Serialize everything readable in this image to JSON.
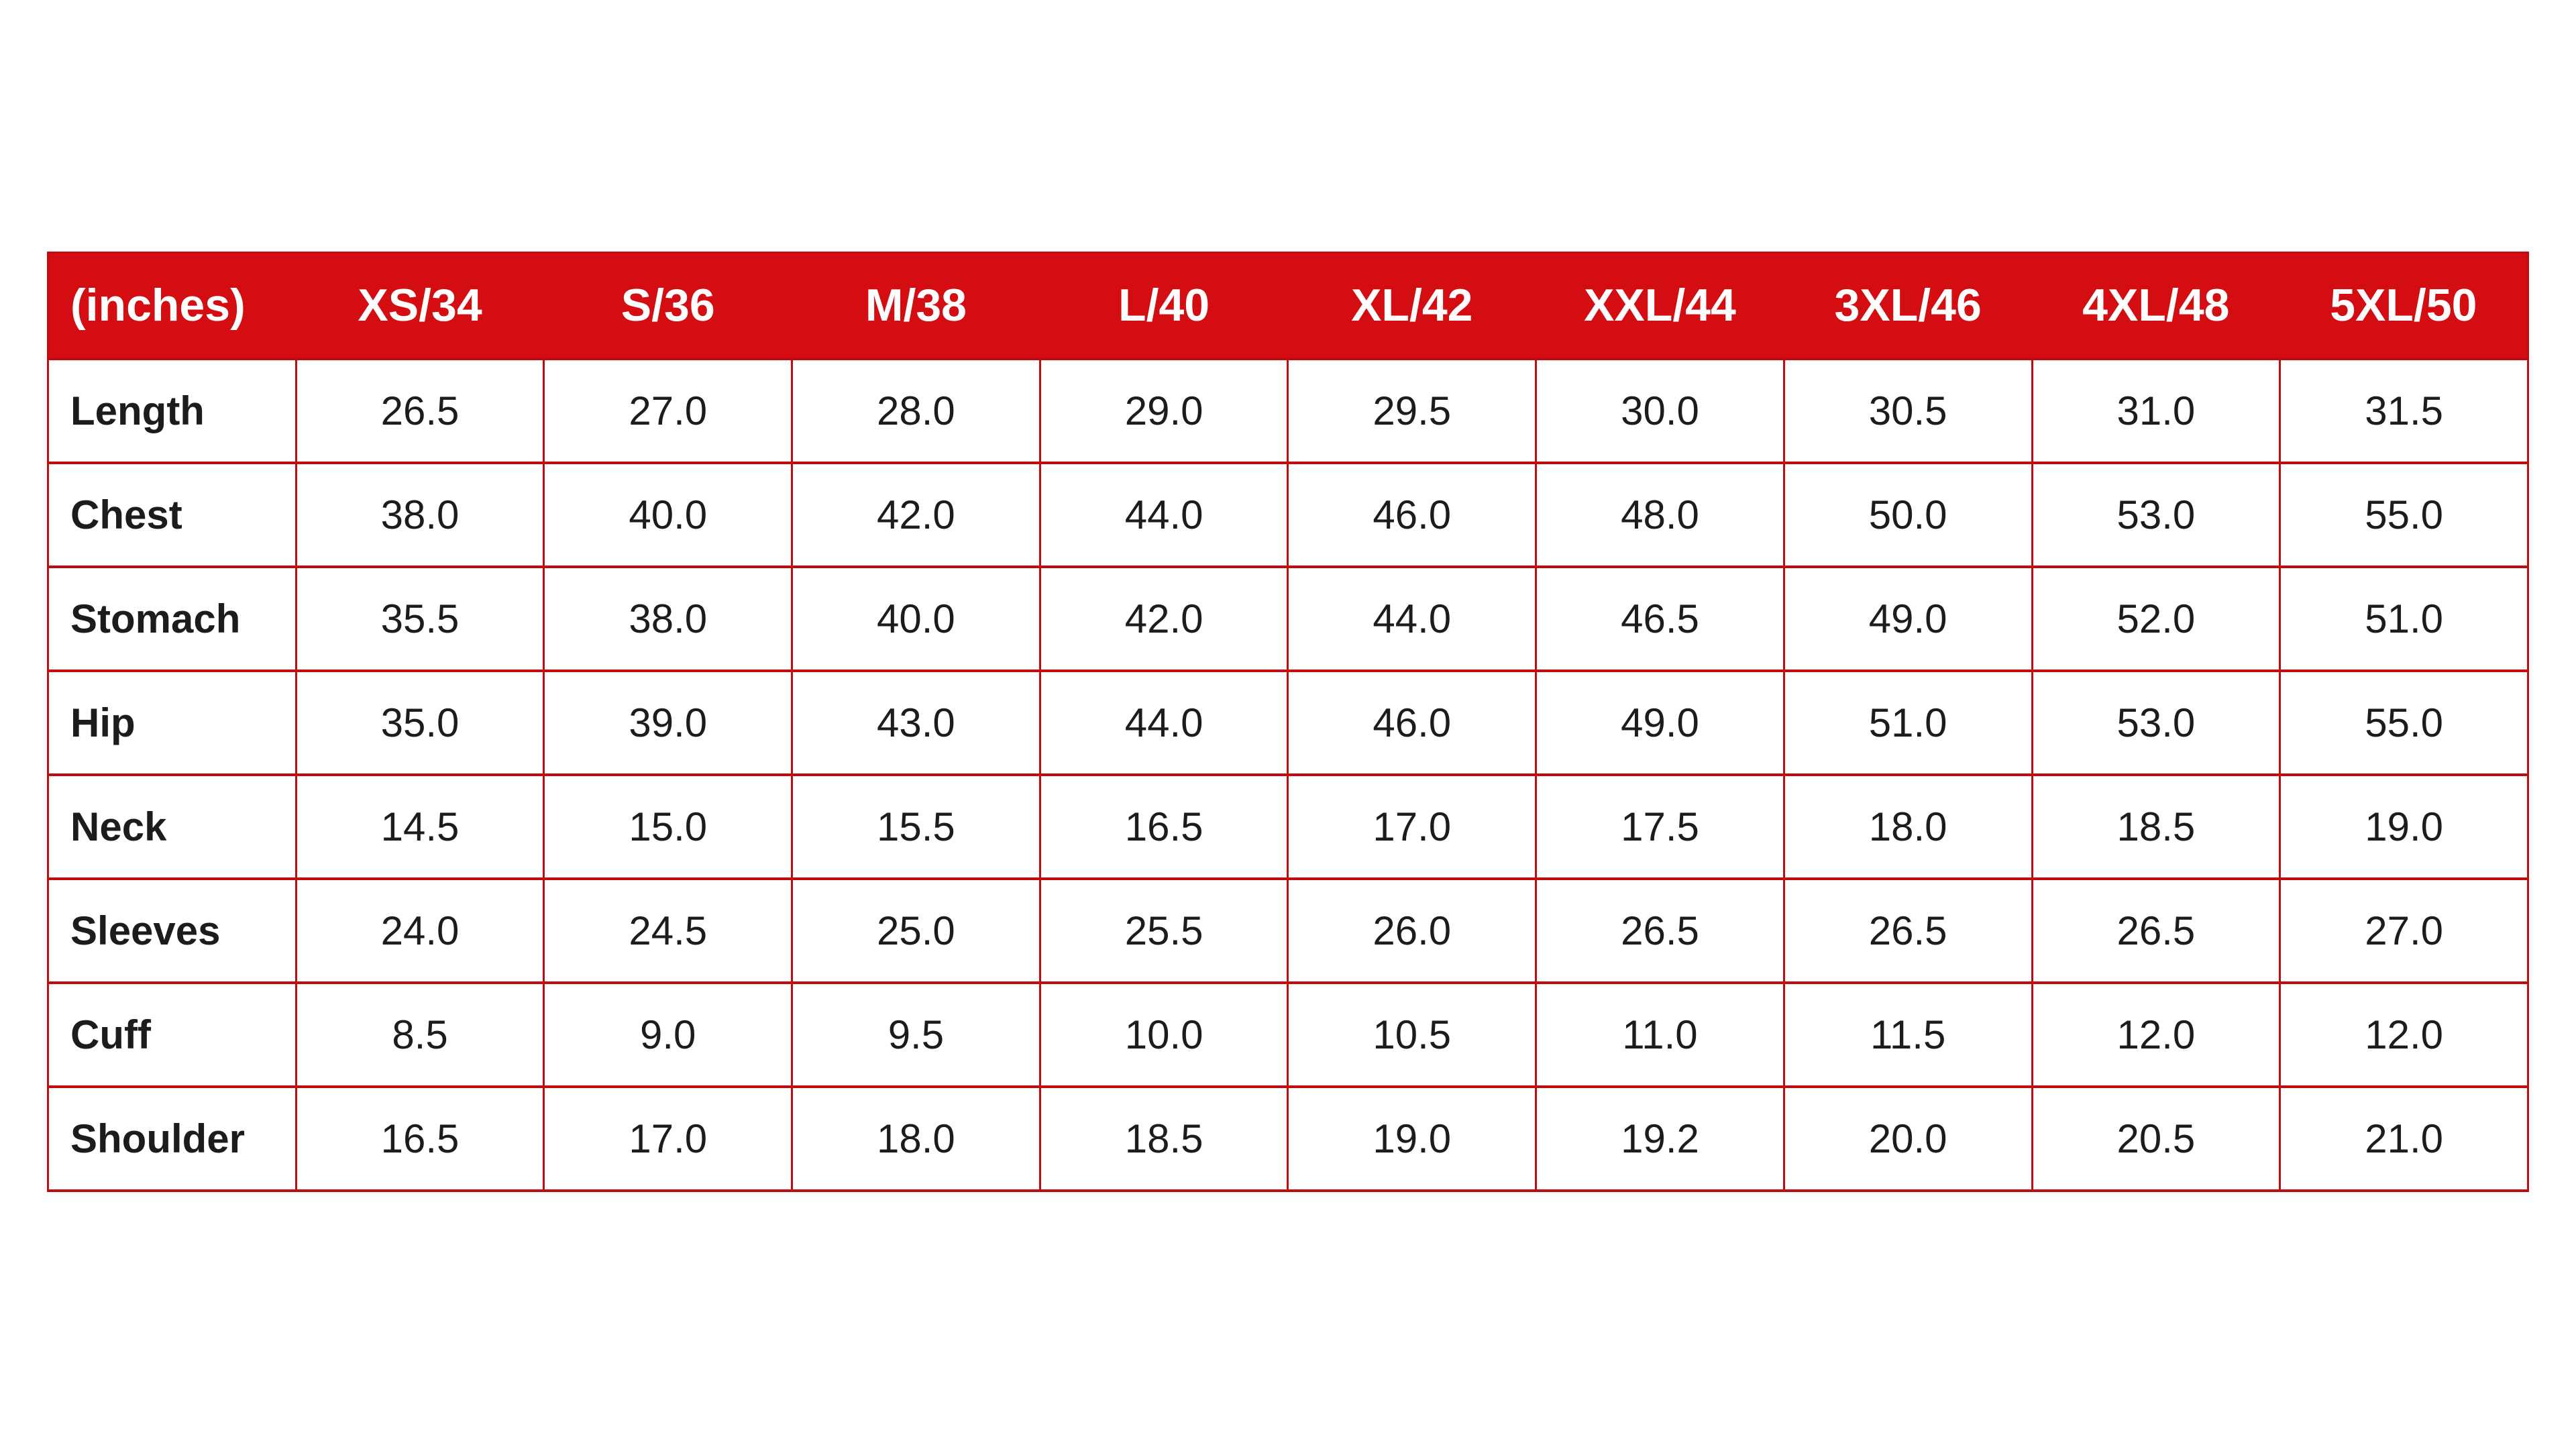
{
  "page": {
    "background_color": "#ffffff"
  },
  "table": {
    "unit_label": "(inches)",
    "columns": [
      "XS/34",
      "S/36",
      "M/38",
      "L/40",
      "XL/42",
      "XXL/44",
      "3XL/46",
      "4XL/48",
      "5XL/50"
    ],
    "rows": [
      {
        "label": "Length",
        "values": [
          "26.5",
          "27.0",
          "28.0",
          "29.0",
          "29.5",
          "30.0",
          "30.5",
          "31.0",
          "31.5"
        ]
      },
      {
        "label": "Chest",
        "values": [
          "38.0",
          "40.0",
          "42.0",
          "44.0",
          "46.0",
          "48.0",
          "50.0",
          "53.0",
          "55.0"
        ]
      },
      {
        "label": "Stomach",
        "values": [
          "35.5",
          "38.0",
          "40.0",
          "42.0",
          "44.0",
          "46.5",
          "49.0",
          "52.0",
          "51.0"
        ]
      },
      {
        "label": "Hip",
        "values": [
          "35.0",
          "39.0",
          "43.0",
          "44.0",
          "46.0",
          "49.0",
          "51.0",
          "53.0",
          "55.0"
        ]
      },
      {
        "label": "Neck",
        "values": [
          "14.5",
          "15.0",
          "15.5",
          "16.5",
          "17.0",
          "17.5",
          "18.0",
          "18.5",
          "19.0"
        ]
      },
      {
        "label": "Sleeves",
        "values": [
          "24.0",
          "24.5",
          "25.0",
          "25.5",
          "26.0",
          "26.5",
          "26.5",
          "26.5",
          "27.0"
        ]
      },
      {
        "label": "Cuff",
        "values": [
          "8.5",
          "9.0",
          "9.5",
          "10.0",
          "10.5",
          "11.0",
          "11.5",
          "12.0",
          "12.0"
        ]
      },
      {
        "label": "Shoulder",
        "values": [
          "16.5",
          "17.0",
          "18.0",
          "18.5",
          "19.0",
          "19.2",
          "20.0",
          "20.5",
          "21.0"
        ]
      }
    ],
    "colors": {
      "header_bg": "#d40d12",
      "header_text": "#ffffff",
      "grid_line": "#c00b0f",
      "cell_text": "#1c1c1c"
    }
  }
}
